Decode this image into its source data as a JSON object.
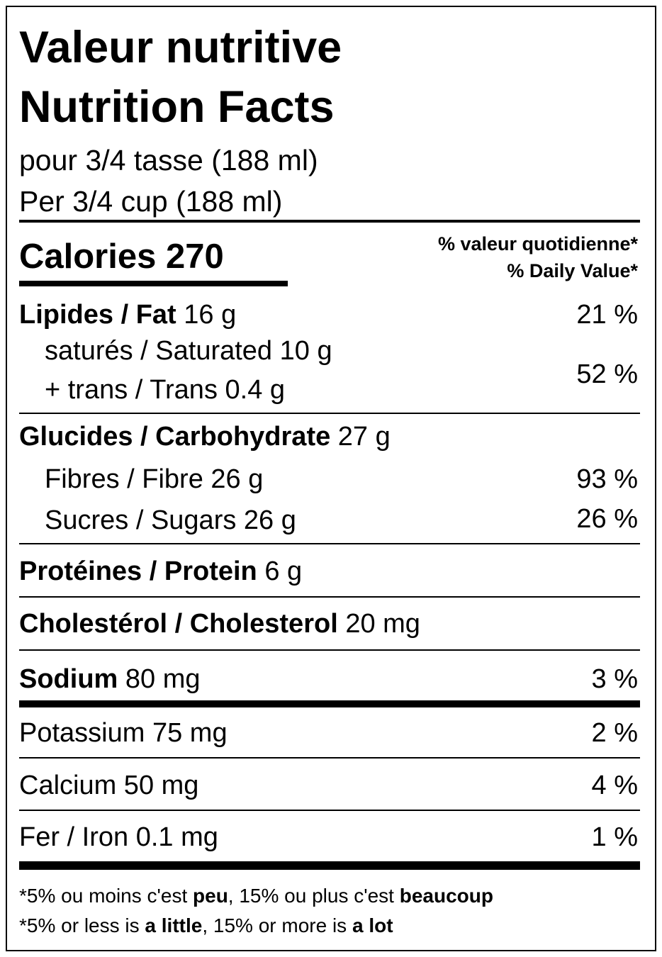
{
  "header": {
    "title_fr": "Valeur nutritive",
    "title_en": "Nutrition Facts",
    "serving_fr": "pour 3/4 tasse (188 ml)",
    "serving_en": "Per 3/4 cup (188 ml)"
  },
  "calories": "Calories 270",
  "dv_header": {
    "fr": "% valeur quotidienne*",
    "en": "% Daily Value*"
  },
  "fat": {
    "name": "Lipides / Fat",
    "amount": "16 g",
    "dv": "21 %"
  },
  "saturated": "saturés / Saturated 10 g",
  "trans": "+ trans / Trans 0.4 g",
  "sat_trans_dv": "52 %",
  "carbohydrate": {
    "name": "Glucides / Carbohydrate",
    "amount": "27 g"
  },
  "fibre": {
    "text": "Fibres / Fibre 26 g",
    "dv": "93 %"
  },
  "sugars": {
    "text": "Sucres / Sugars 26 g",
    "dv": "26 %"
  },
  "protein": {
    "name": "Protéines / Protein",
    "amount": "6 g"
  },
  "cholesterol": {
    "name": "Cholestérol / Cholesterol",
    "amount": "20 mg"
  },
  "sodium": {
    "name": "Sodium",
    "amount": "80 mg",
    "dv": "3 %"
  },
  "potassium": {
    "text": "Potassium 75 mg",
    "dv": "2 %"
  },
  "calcium": {
    "text": "Calcium 50 mg",
    "dv": "4 %"
  },
  "iron": {
    "text": "Fer / Iron 0.1 mg",
    "dv": "1 %"
  },
  "footnote": {
    "fr": [
      "*5% ou moins c'est",
      "peu",
      ", 15% ou plus c'est",
      "beaucoup"
    ],
    "en": [
      "*5% or less is",
      "a little",
      ", 15% or more is",
      "a lot"
    ]
  }
}
